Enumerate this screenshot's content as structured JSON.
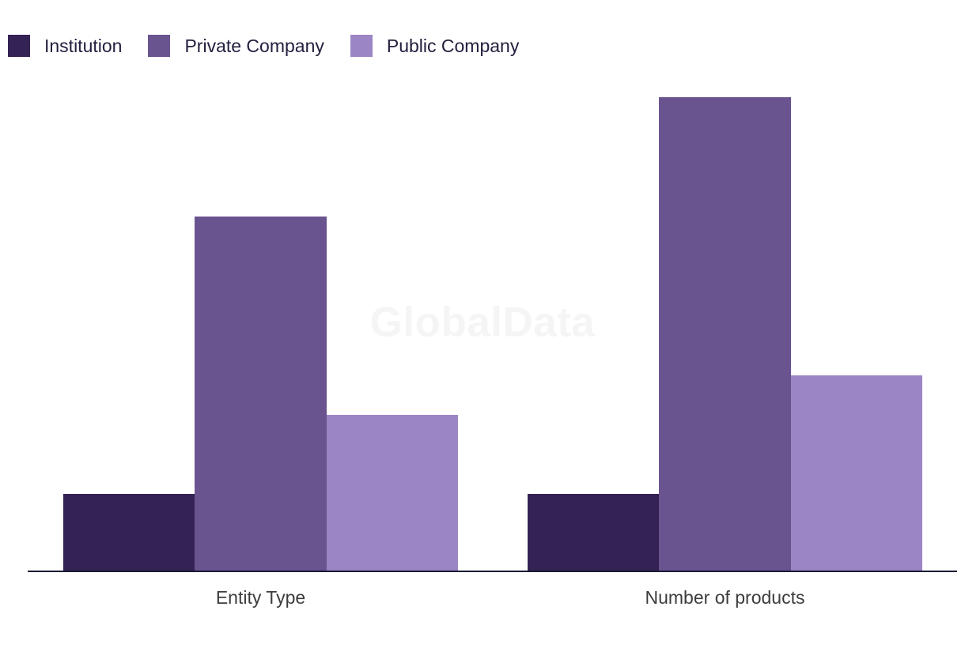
{
  "watermark": {
    "text": "GlobalData"
  },
  "legend": {
    "items": [
      {
        "label": "Institution",
        "color": "#342254"
      },
      {
        "label": "Private Company",
        "color": "#6a5490"
      },
      {
        "label": "Public Company",
        "color": "#9c85c4"
      }
    ]
  },
  "axis": {
    "line_color": "#151a33"
  },
  "chart_data": {
    "type": "bar",
    "categories": [
      "Entity Type",
      "Number of products"
    ],
    "series": [
      {
        "name": "Institution",
        "color": "#342254",
        "values": [
          98,
          98
        ]
      },
      {
        "name": "Private Company",
        "color": "#6a5490",
        "values": [
          449,
          600
        ]
      },
      {
        "name": "Public Company",
        "color": "#9c85c4",
        "values": [
          198,
          248
        ]
      }
    ],
    "title": "",
    "xlabel": "",
    "ylabel": "",
    "grid": false,
    "legend_position": "top-left",
    "y_axis": "hidden",
    "values_note": "no numeric y-axis or data labels shown; values are bar heights measured in screenshot pixels (max bar = 600)"
  }
}
